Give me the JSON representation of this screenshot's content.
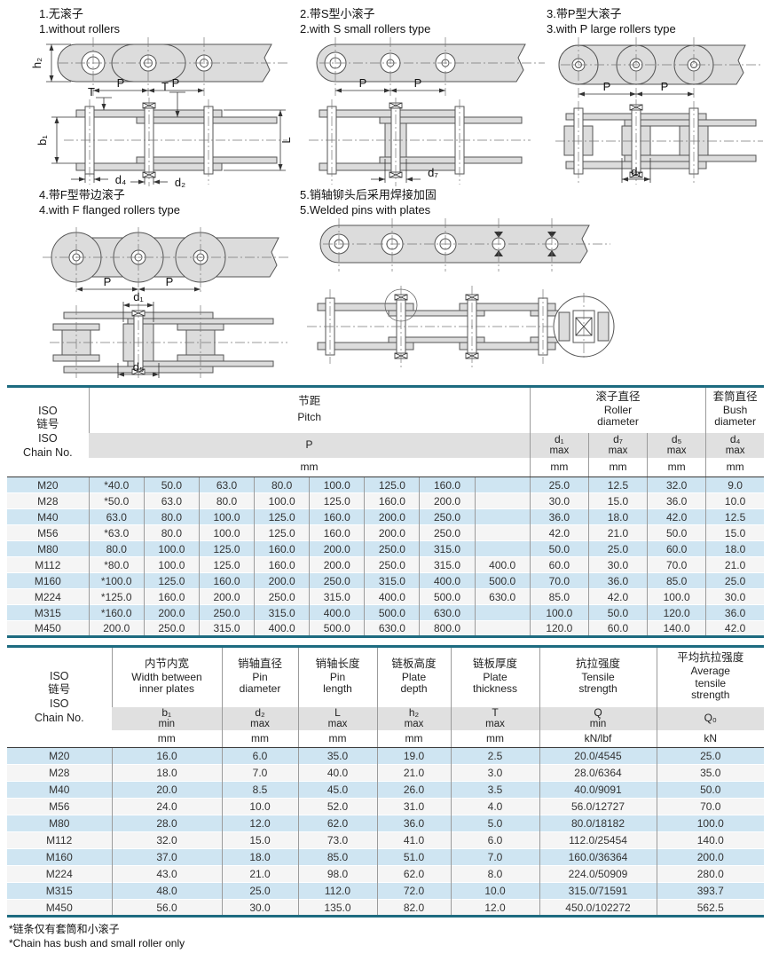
{
  "dims": {
    "P": "P",
    "h2": "h₂",
    "b1": "b₁",
    "T": "T",
    "L": "L",
    "d1": "d₁",
    "d2": "d₂",
    "d4": "d₄",
    "d5": "d₅",
    "d7": "d₇"
  },
  "diagrams": [
    {
      "zh": "1.无滚子",
      "en": "1.without rollers"
    },
    {
      "zh": "2.带S型小滚子",
      "en": "2.with S small rollers type"
    },
    {
      "zh": "3.带P型大滚子",
      "en": "3.with P large rollers type"
    },
    {
      "zh": "4.带F型带边滚子",
      "en": "4.with F flanged rollers type"
    },
    {
      "zh": "5.销轴铆头后采用焊接加固",
      "en": "5.Welded pins with plates"
    }
  ],
  "table1": {
    "iso": [
      "ISO",
      "链号",
      "ISO",
      "Chain No."
    ],
    "pitch": {
      "zh": "节距",
      "en": "Pitch",
      "sym": "P",
      "unit": "mm"
    },
    "roller": {
      "zh": "滚子直径",
      "en": "Roller diameter"
    },
    "bush": {
      "zh": "套筒直径",
      "en": "Bush diameter"
    },
    "dia_cols": [
      {
        "sym": "d₁",
        "qual": "max",
        "unit": "mm"
      },
      {
        "sym": "d₇",
        "qual": "max",
        "unit": "mm"
      },
      {
        "sym": "d₅",
        "qual": "max",
        "unit": "mm"
      },
      {
        "sym": "d₄",
        "qual": "max",
        "unit": "mm"
      }
    ],
    "rows": [
      {
        "no": "M20",
        "pitch": [
          "*40.0",
          "50.0",
          "63.0",
          "80.0",
          "100.0",
          "125.0",
          "160.0",
          ""
        ],
        "dia": [
          "25.0",
          "12.5",
          "32.0",
          "9.0"
        ]
      },
      {
        "no": "M28",
        "pitch": [
          "*50.0",
          "63.0",
          "80.0",
          "100.0",
          "125.0",
          "160.0",
          "200.0",
          ""
        ],
        "dia": [
          "30.0",
          "15.0",
          "36.0",
          "10.0"
        ]
      },
      {
        "no": "M40",
        "pitch": [
          "63.0",
          "80.0",
          "100.0",
          "125.0",
          "160.0",
          "200.0",
          "250.0",
          ""
        ],
        "dia": [
          "36.0",
          "18.0",
          "42.0",
          "12.5"
        ]
      },
      {
        "no": "M56",
        "pitch": [
          "*63.0",
          "80.0",
          "100.0",
          "125.0",
          "160.0",
          "200.0",
          "250.0",
          ""
        ],
        "dia": [
          "42.0",
          "21.0",
          "50.0",
          "15.0"
        ]
      },
      {
        "no": "M80",
        "pitch": [
          "80.0",
          "100.0",
          "125.0",
          "160.0",
          "200.0",
          "250.0",
          "315.0",
          ""
        ],
        "dia": [
          "50.0",
          "25.0",
          "60.0",
          "18.0"
        ]
      },
      {
        "no": "M112",
        "pitch": [
          "*80.0",
          "100.0",
          "125.0",
          "160.0",
          "200.0",
          "250.0",
          "315.0",
          "400.0"
        ],
        "dia": [
          "60.0",
          "30.0",
          "70.0",
          "21.0"
        ]
      },
      {
        "no": "M160",
        "pitch": [
          "*100.0",
          "125.0",
          "160.0",
          "200.0",
          "250.0",
          "315.0",
          "400.0",
          "500.0"
        ],
        "dia": [
          "70.0",
          "36.0",
          "85.0",
          "25.0"
        ]
      },
      {
        "no": "M224",
        "pitch": [
          "*125.0",
          "160.0",
          "200.0",
          "250.0",
          "315.0",
          "400.0",
          "500.0",
          "630.0"
        ],
        "dia": [
          "85.0",
          "42.0",
          "100.0",
          "30.0"
        ]
      },
      {
        "no": "M315",
        "pitch": [
          "*160.0",
          "200.0",
          "250.0",
          "315.0",
          "400.0",
          "500.0",
          "630.0",
          ""
        ],
        "dia": [
          "100.0",
          "50.0",
          "120.0",
          "36.0"
        ]
      },
      {
        "no": "M450",
        "pitch": [
          "200.0",
          "250.0",
          "315.0",
          "400.0",
          "500.0",
          "630.0",
          "800.0",
          ""
        ],
        "dia": [
          "120.0",
          "60.0",
          "140.0",
          "42.0"
        ]
      }
    ]
  },
  "table2": {
    "iso": [
      "ISO",
      "链号",
      "ISO",
      "Chain No."
    ],
    "cols": [
      {
        "zh": "内节内宽",
        "en": "Width between inner plates",
        "sym": "b₁",
        "qual": "min",
        "unit": "mm"
      },
      {
        "zh": "销轴直径",
        "en": "Pin diameter",
        "sym": "d₂",
        "qual": "max",
        "unit": "mm"
      },
      {
        "zh": "销轴长度",
        "en": "Pin length",
        "sym": "L",
        "qual": "max",
        "unit": "mm"
      },
      {
        "zh": "链板高度",
        "en": "Plate depth",
        "sym": "h₂",
        "qual": "max",
        "unit": "mm"
      },
      {
        "zh": "链板厚度",
        "en": "Plate thickness",
        "sym": "T",
        "qual": "max",
        "unit": "mm"
      },
      {
        "zh": "抗拉强度",
        "en": "Tensile strength",
        "sym": "Q",
        "qual": "min",
        "unit": "kN/lbf"
      },
      {
        "zh": "平均抗拉强度",
        "en": "Average tensile strength",
        "sym": "Q₀",
        "qual": "",
        "unit": "kN"
      }
    ],
    "rows": [
      {
        "no": "M20",
        "values": [
          "16.0",
          "6.0",
          "35.0",
          "19.0",
          "2.5",
          "20.0/4545",
          "25.0"
        ]
      },
      {
        "no": "M28",
        "values": [
          "18.0",
          "7.0",
          "40.0",
          "21.0",
          "3.0",
          "28.0/6364",
          "35.0"
        ]
      },
      {
        "no": "M40",
        "values": [
          "20.0",
          "8.5",
          "45.0",
          "26.0",
          "3.5",
          "40.0/9091",
          "50.0"
        ]
      },
      {
        "no": "M56",
        "values": [
          "24.0",
          "10.0",
          "52.0",
          "31.0",
          "4.0",
          "56.0/12727",
          "70.0"
        ]
      },
      {
        "no": "M80",
        "values": [
          "28.0",
          "12.0",
          "62.0",
          "36.0",
          "5.0",
          "80.0/18182",
          "100.0"
        ]
      },
      {
        "no": "M112",
        "values": [
          "32.0",
          "15.0",
          "73.0",
          "41.0",
          "6.0",
          "112.0/25454",
          "140.0"
        ]
      },
      {
        "no": "M160",
        "values": [
          "37.0",
          "18.0",
          "85.0",
          "51.0",
          "7.0",
          "160.0/36364",
          "200.0"
        ]
      },
      {
        "no": "M224",
        "values": [
          "43.0",
          "21.0",
          "98.0",
          "62.0",
          "8.0",
          "224.0/50909",
          "280.0"
        ]
      },
      {
        "no": "M315",
        "values": [
          "48.0",
          "25.0",
          "112.0",
          "72.0",
          "10.0",
          "315.0/71591",
          "393.7"
        ]
      },
      {
        "no": "M450",
        "values": [
          "56.0",
          "30.0",
          "135.0",
          "82.0",
          "12.0",
          "450.0/102272",
          "562.5"
        ]
      }
    ]
  },
  "footnote": {
    "zh": "*链条仅有套筒和小滚子",
    "en": "*Chain has bush and small roller only"
  },
  "colors": {
    "accent": "#1e6b80",
    "stripe": "#cfe5f2",
    "band": "#e0e0e0"
  }
}
